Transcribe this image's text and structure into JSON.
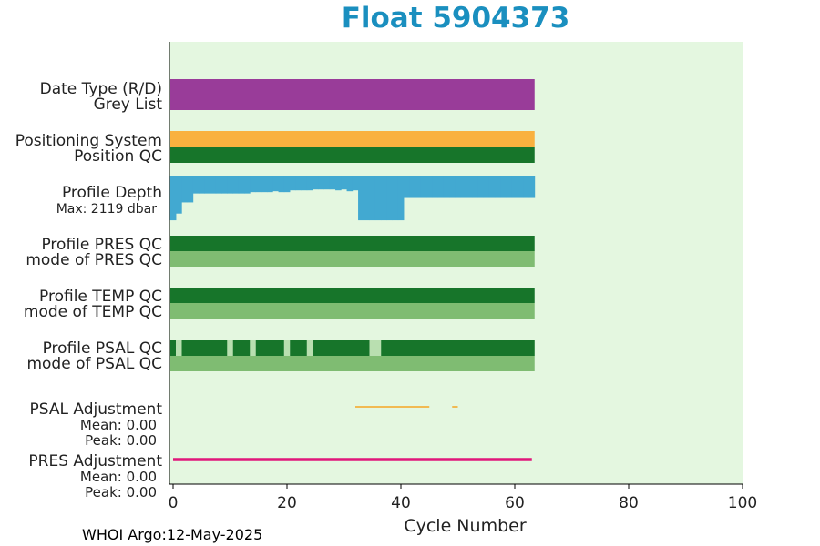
{
  "title": "Float 5904373",
  "footer": "WHOI Argo:12-May-2025",
  "colors": {
    "title": "#1a8fbf",
    "background": "#e4f7e0",
    "date_type": "#993c99",
    "positioning": "#f9b13f",
    "good_qc": "#17752a",
    "mode": "#7fbc72",
    "profile_depth": "#42a9d1",
    "max_depth_text": "#1a8fbf",
    "qc_gap": "#b9dfb0",
    "psal_adjustment": "#f5a623",
    "pres_adjustment": "#e0177a"
  },
  "chart_data": {
    "type": "timeline",
    "title": "Float 5904373",
    "xlabel": "Cycle Number",
    "xlim": [
      -0.5,
      100
    ],
    "xticks": [
      "0",
      "20",
      "40",
      "60",
      "80",
      "100"
    ],
    "last_cycle": 63,
    "rows": [
      {
        "label": "Date Type (R/D)",
        "coverage": [
          [
            0,
            63
          ]
        ]
      },
      {
        "label": "Grey List",
        "coverage": []
      },
      {
        "label": "Positioning System",
        "coverage": [
          [
            0,
            63
          ]
        ]
      },
      {
        "label": "Position QC",
        "coverage": [
          [
            0,
            63
          ]
        ]
      },
      {
        "label": "Profile Depth",
        "sublabel": "Max: 2119 dbar"
      },
      {
        "label": "Profile PRES QC",
        "coverage": [
          [
            0,
            63
          ]
        ]
      },
      {
        "label": "mode of PRES QC",
        "coverage": [
          [
            0,
            63
          ]
        ]
      },
      {
        "label": "Profile TEMP QC",
        "coverage": [
          [
            0,
            63
          ]
        ]
      },
      {
        "label": "mode of TEMP QC",
        "coverage": [
          [
            0,
            63
          ]
        ]
      },
      {
        "label": "Profile PSAL QC",
        "good_segments": [
          [
            0,
            0
          ],
          [
            2,
            9
          ],
          [
            11,
            13
          ],
          [
            15,
            19
          ],
          [
            21,
            23
          ],
          [
            25,
            34
          ],
          [
            37,
            63
          ]
        ]
      },
      {
        "label": "mode of PSAL QC",
        "coverage": [
          [
            0,
            63
          ]
        ]
      },
      {
        "label": "PSAL Adjustment",
        "stats": [
          "Mean: 0.00",
          "Peak: 0.00"
        ],
        "segments": [
          [
            32,
            45
          ],
          [
            49,
            50
          ]
        ]
      },
      {
        "label": "PRES Adjustment",
        "stats": [
          "Mean: 0.00",
          "Peak: 0.00"
        ],
        "segments": [
          [
            0,
            63
          ]
        ]
      }
    ],
    "profile_depth": {
      "max_dbar": 2119,
      "cycles": [
        0,
        1,
        2,
        3,
        4,
        5,
        6,
        7,
        8,
        9,
        10,
        11,
        12,
        13,
        14,
        15,
        16,
        17,
        18,
        19,
        20,
        21,
        22,
        23,
        24,
        25,
        26,
        27,
        28,
        29,
        30,
        31,
        32,
        33,
        34,
        35,
        36,
        37,
        38,
        39,
        40,
        41,
        42,
        43,
        44,
        45,
        46,
        47,
        48,
        49,
        50,
        51,
        52,
        53,
        54,
        55,
        56,
        57,
        58,
        59,
        60,
        61,
        62,
        63
      ],
      "values_dbar": [
        2000,
        1700,
        1200,
        1200,
        800,
        800,
        800,
        800,
        800,
        800,
        800,
        800,
        800,
        800,
        740,
        740,
        740,
        740,
        700,
        740,
        740,
        660,
        660,
        660,
        660,
        620,
        620,
        620,
        620,
        660,
        620,
        700,
        660,
        2000,
        2000,
        2000,
        2000,
        2000,
        2000,
        2000,
        2000,
        1000,
        1000,
        1000,
        1000,
        1000,
        1000,
        1000,
        1000,
        1000,
        1000,
        1000,
        1000,
        1000,
        1000,
        1000,
        1000,
        1000,
        1000,
        1000,
        1000,
        1000,
        1000,
        1000
      ]
    }
  }
}
